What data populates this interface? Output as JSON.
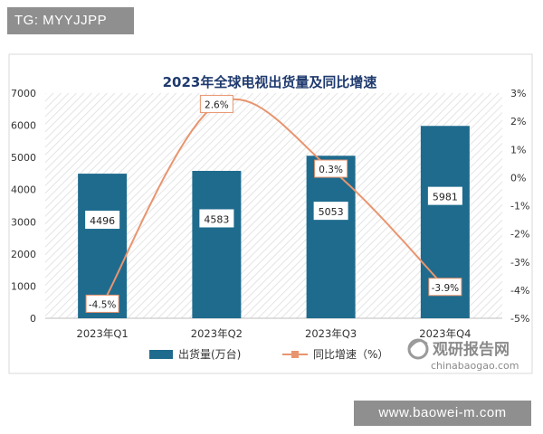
{
  "watermark_top": "TG: MYYJJPP",
  "watermark_bottom": "www.baowei-m.com",
  "brand": {
    "name": "观研报告网",
    "url": "chinabaogao.com"
  },
  "colors": {
    "bar": "#1f6b8e",
    "line": "#e8956f",
    "title": "#1f3a6e"
  },
  "chart_data": {
    "type": "bar",
    "title": "2023年全球电视出货量及同比增速",
    "categories": [
      "2023年Q1",
      "2023年Q2",
      "2023年Q3",
      "2023年Q4"
    ],
    "series": [
      {
        "name": "出货量(万台)",
        "type": "bar",
        "axis": "left",
        "values": [
          4496,
          4583,
          5053,
          5981
        ]
      },
      {
        "name": "同比增速（%）",
        "type": "line",
        "axis": "right",
        "values": [
          -4.5,
          2.6,
          0.3,
          -3.9
        ]
      }
    ],
    "bar_labels": [
      "4496",
      "4583",
      "5053",
      "5981"
    ],
    "line_labels": [
      "-4.5%",
      "2.6%",
      "0.3%",
      "-3.9%"
    ],
    "ylim_left": [
      0,
      7000
    ],
    "yticks_left": [
      "0",
      "1000",
      "2000",
      "3000",
      "4000",
      "5000",
      "6000",
      "7000"
    ],
    "ylim_right": [
      -5,
      3
    ],
    "yticks_right": [
      "-5%",
      "-4%",
      "-3%",
      "-2%",
      "-1%",
      "0%",
      "1%",
      "2%",
      "3%"
    ],
    "legend_position": "bottom",
    "grid": false
  }
}
